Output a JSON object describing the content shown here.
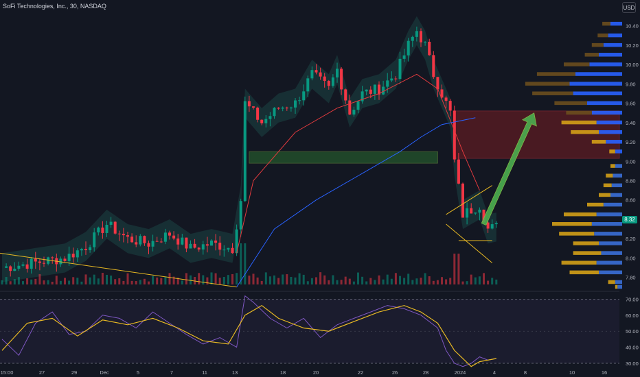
{
  "header": {
    "title": "SoFi Technologies, Inc., 30, NASDAQ",
    "currency": "USD"
  },
  "last_price": "8.32",
  "colors": {
    "background": "#131722",
    "bull": "#089981",
    "bear": "#f23645",
    "ma_red": "#e03a3e",
    "ma_blue": "#2962ff",
    "rsi_line": "#7e57c2",
    "rsi_ma": "#e8b923",
    "arrow": "#4caf50",
    "supply_zone": "#8b1e24",
    "demand_zone": "#2e7d32"
  },
  "chart_data": [
    {
      "type": "candlestick",
      "symbol": "SOFI",
      "interval": "30",
      "exchange": "NASDAQ",
      "y_axis": {
        "ticks": [
          "10.40",
          "10.20",
          "10.00",
          "9.80",
          "9.60",
          "9.40",
          "9.20",
          "9.00",
          "8.80",
          "8.60",
          "8.40",
          "8.20",
          "8.00",
          "7.80"
        ],
        "range": [
          7.67,
          10.49
        ]
      },
      "x_axis": {
        "ticks": [
          "15:00",
          "27",
          "29",
          "Dec",
          "5",
          "7",
          "11",
          "13",
          "18",
          "20",
          "22",
          "26",
          "28",
          "2024",
          "4",
          "8",
          "10",
          "16",
          "18"
        ]
      },
      "price_path": [
        [
          0,
          7.9
        ],
        [
          15,
          8.0
        ],
        [
          20,
          8.12
        ],
        [
          25,
          8.35
        ],
        [
          30,
          8.2
        ],
        [
          35,
          8.15
        ],
        [
          40,
          8.25
        ],
        [
          45,
          8.1
        ],
        [
          50,
          8.15
        ],
        [
          55,
          8.1
        ],
        [
          57,
          8.6
        ],
        [
          58,
          9.6
        ],
        [
          62,
          9.4
        ],
        [
          66,
          9.55
        ],
        [
          70,
          9.6
        ],
        [
          74,
          9.9
        ],
        [
          78,
          9.75
        ],
        [
          80,
          9.95
        ],
        [
          83,
          9.5
        ],
        [
          86,
          9.7
        ],
        [
          90,
          9.75
        ],
        [
          94,
          9.9
        ],
        [
          97,
          10.2
        ],
        [
          99,
          10.35
        ],
        [
          101,
          10.2
        ],
        [
          103,
          9.9
        ],
        [
          105,
          9.7
        ],
        [
          107,
          9.5
        ],
        [
          108,
          9.0
        ],
        [
          110,
          8.45
        ],
        [
          112,
          8.5
        ],
        [
          114,
          8.55
        ],
        [
          116,
          8.3
        ],
        [
          118,
          8.32
        ]
      ],
      "moving_averages": [
        {
          "name": "MA red",
          "points": [
            [
              56,
              8.05
            ],
            [
              60,
              8.8
            ],
            [
              70,
              9.3
            ],
            [
              80,
              9.55
            ],
            [
              90,
              9.7
            ],
            [
              99,
              9.9
            ],
            [
              104,
              9.75
            ],
            [
              110,
              9.1
            ],
            [
              114,
              8.7
            ]
          ]
        },
        {
          "name": "MA blue",
          "points": [
            [
              56,
              7.7
            ],
            [
              65,
              8.3
            ],
            [
              75,
              8.6
            ],
            [
              85,
              8.85
            ],
            [
              95,
              9.1
            ],
            [
              100,
              9.25
            ],
            [
              105,
              9.38
            ],
            [
              113,
              9.45
            ]
          ]
        }
      ],
      "zones": [
        {
          "kind": "supply",
          "from": 108,
          "to": 148,
          "top": 9.52,
          "bottom": 9.03
        },
        {
          "kind": "demand",
          "from": 59,
          "to": 104,
          "top": 9.1,
          "bottom": 8.98
        }
      ],
      "projection_arrow": {
        "from": [
          115,
          8.35
        ],
        "to": [
          127,
          9.5
        ]
      },
      "volume_profile": [
        {
          "price": 10.42,
          "buy": 0.1,
          "sell": 0.07
        },
        {
          "price": 10.3,
          "buy": 0.12,
          "sell": 0.09
        },
        {
          "price": 10.2,
          "buy": 0.16,
          "sell": 0.1
        },
        {
          "price": 10.1,
          "buy": 0.2,
          "sell": 0.12
        },
        {
          "price": 10.0,
          "buy": 0.28,
          "sell": 0.22
        },
        {
          "price": 9.9,
          "buy": 0.4,
          "sell": 0.33
        },
        {
          "price": 9.8,
          "buy": 0.45,
          "sell": 0.38
        },
        {
          "price": 9.7,
          "buy": 0.42,
          "sell": 0.35
        },
        {
          "price": 9.6,
          "buy": 0.3,
          "sell": 0.28
        },
        {
          "price": 9.5,
          "buy": 0.26,
          "sell": 0.22
        },
        {
          "price": 9.4,
          "buy": 0.22,
          "sell": 0.3
        },
        {
          "price": 9.3,
          "buy": 0.2,
          "sell": 0.24
        },
        {
          "price": 9.2,
          "buy": 0.14,
          "sell": 0.12
        },
        {
          "price": 9.1,
          "buy": 0.06,
          "sell": 0.05
        },
        {
          "price": 8.95,
          "buy": 0.06,
          "sell": 0.04
        },
        {
          "price": 8.85,
          "buy": 0.08,
          "sell": 0.06
        },
        {
          "price": 8.75,
          "buy": 0.09,
          "sell": 0.07
        },
        {
          "price": 8.65,
          "buy": 0.1,
          "sell": 0.1
        },
        {
          "price": 8.55,
          "buy": 0.16,
          "sell": 0.14
        },
        {
          "price": 8.45,
          "buy": 0.22,
          "sell": 0.28
        },
        {
          "price": 8.35,
          "buy": 0.26,
          "sell": 0.34
        },
        {
          "price": 8.25,
          "buy": 0.24,
          "sell": 0.3
        },
        {
          "price": 8.15,
          "buy": 0.2,
          "sell": 0.22
        },
        {
          "price": 8.05,
          "buy": 0.18,
          "sell": 0.24
        },
        {
          "price": 7.95,
          "buy": 0.22,
          "sell": 0.3
        },
        {
          "price": 7.85,
          "buy": 0.2,
          "sell": 0.25
        },
        {
          "price": 7.75,
          "buy": 0.06,
          "sell": 0.06
        },
        {
          "price": 7.7,
          "buy": 0.04,
          "sell": 0.02
        }
      ]
    },
    {
      "type": "line",
      "name": "RSI",
      "y_axis": {
        "ticks": [
          "70.00",
          "60.00",
          "50.00",
          "40.00",
          "30.00"
        ],
        "range": [
          27,
          74
        ]
      },
      "bands": [
        70,
        30
      ],
      "rsi": [
        [
          0,
          45
        ],
        [
          4,
          35
        ],
        [
          8,
          55
        ],
        [
          12,
          62
        ],
        [
          16,
          48
        ],
        [
          20,
          50
        ],
        [
          24,
          60
        ],
        [
          28,
          58
        ],
        [
          32,
          52
        ],
        [
          36,
          62
        ],
        [
          40,
          55
        ],
        [
          44,
          48
        ],
        [
          48,
          42
        ],
        [
          52,
          46
        ],
        [
          56,
          40
        ],
        [
          58,
          72
        ],
        [
          60,
          68
        ],
        [
          64,
          58
        ],
        [
          68,
          52
        ],
        [
          72,
          58
        ],
        [
          76,
          46
        ],
        [
          80,
          54
        ],
        [
          84,
          58
        ],
        [
          88,
          62
        ],
        [
          92,
          66
        ],
        [
          96,
          64
        ],
        [
          100,
          60
        ],
        [
          104,
          52
        ],
        [
          106,
          38
        ],
        [
          108,
          30
        ],
        [
          110,
          28
        ],
        [
          112,
          30
        ],
        [
          114,
          34
        ],
        [
          116,
          32
        ],
        [
          118,
          33
        ]
      ],
      "rsi_ma": [
        [
          0,
          38
        ],
        [
          6,
          55
        ],
        [
          12,
          58
        ],
        [
          18,
          47
        ],
        [
          24,
          57
        ],
        [
          30,
          54
        ],
        [
          36,
          58
        ],
        [
          42,
          52
        ],
        [
          48,
          44
        ],
        [
          54,
          42
        ],
        [
          58,
          60
        ],
        [
          62,
          66
        ],
        [
          66,
          58
        ],
        [
          72,
          52
        ],
        [
          78,
          50
        ],
        [
          84,
          56
        ],
        [
          90,
          62
        ],
        [
          96,
          66
        ],
        [
          100,
          62
        ],
        [
          104,
          55
        ],
        [
          108,
          38
        ],
        [
          112,
          28
        ],
        [
          114,
          31
        ],
        [
          118,
          33
        ]
      ]
    }
  ]
}
